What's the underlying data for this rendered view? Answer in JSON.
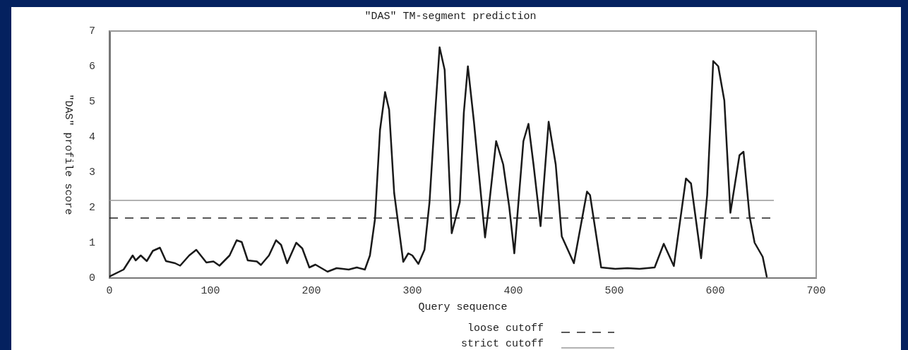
{
  "chart_data": {
    "type": "line",
    "title": "\"DAS\" TM-segment prediction",
    "xlabel": "Query sequence",
    "ylabel": "\"DAS\" profile score",
    "xlim": [
      0,
      700
    ],
    "xticks": [
      0,
      100,
      200,
      300,
      400,
      500,
      600,
      700
    ],
    "ylim": [
      0,
      7
    ],
    "yticks": [
      0,
      1,
      2,
      3,
      4,
      5,
      6,
      7
    ],
    "grid": false,
    "legend": "bottom",
    "marker": "none",
    "line_style": "solid",
    "series": [
      {
        "color": "#1a1a1a",
        "x": [
          0,
          14,
          23,
          26,
          31,
          37,
          43,
          50,
          56,
          65,
          70,
          79,
          86,
          96,
          103,
          109,
          119,
          126,
          131,
          137,
          146,
          150,
          158,
          165,
          170,
          176,
          185,
          191,
          198,
          204,
          216,
          225,
          237,
          245,
          253,
          258,
          263,
          268,
          273,
          277,
          282,
          291,
          296,
          300,
          306,
          312,
          317,
          322,
          327,
          332,
          339,
          347,
          351,
          355,
          361,
          372,
          376,
          383,
          390,
          396,
          401,
          410,
          415,
          420,
          427,
          435,
          442,
          448,
          460,
          473,
          476,
          487,
          501,
          513,
          525,
          540,
          549,
          559,
          571,
          576,
          586,
          592,
          598,
          603,
          609,
          615,
          624,
          628,
          634,
          639,
          647,
          651
        ],
        "values": [
          0.04,
          0.24,
          0.64,
          0.5,
          0.64,
          0.48,
          0.77,
          0.86,
          0.48,
          0.42,
          0.35,
          0.64,
          0.8,
          0.44,
          0.47,
          0.35,
          0.64,
          1.07,
          1.02,
          0.5,
          0.47,
          0.37,
          0.64,
          1.07,
          0.94,
          0.42,
          1.0,
          0.84,
          0.3,
          0.38,
          0.18,
          0.28,
          0.24,
          0.3,
          0.24,
          0.64,
          1.67,
          4.2,
          5.27,
          4.77,
          2.41,
          0.46,
          0.7,
          0.64,
          0.4,
          0.8,
          2.15,
          4.43,
          6.54,
          5.9,
          1.27,
          2.15,
          4.69,
          6.0,
          4.43,
          1.15,
          2.07,
          3.88,
          3.22,
          2.01,
          0.7,
          3.88,
          4.37,
          3.22,
          1.47,
          4.43,
          3.22,
          1.18,
          0.42,
          2.45,
          2.35,
          0.3,
          0.26,
          0.28,
          0.26,
          0.3,
          0.97,
          0.34,
          2.82,
          2.68,
          0.56,
          2.35,
          6.15,
          6.0,
          5.03,
          1.85,
          3.48,
          3.58,
          1.75,
          1.0,
          0.6,
          0.04
        ]
      }
    ],
    "ref_lines": [
      {
        "axis": "y",
        "value": 1.7,
        "label": "loose cutoff",
        "color": "#222222",
        "line_style": "dashed"
      },
      {
        "axis": "y",
        "value": 2.2,
        "label": "strict cutoff",
        "color": "#999999",
        "line_style": "solid"
      }
    ]
  }
}
